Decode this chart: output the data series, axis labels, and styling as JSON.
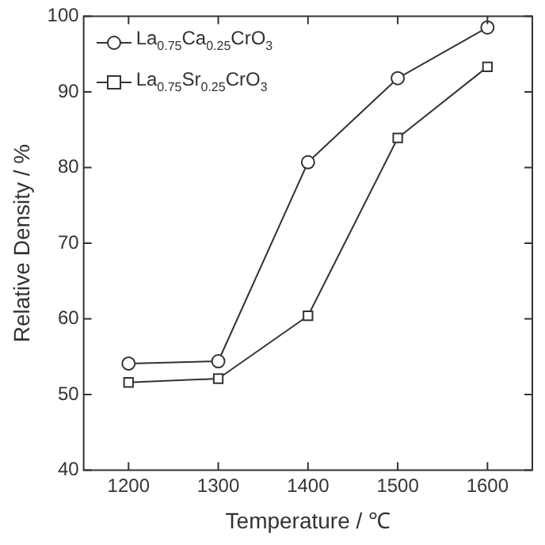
{
  "chart_data": {
    "type": "line",
    "xlabel": "Temperature / ℃",
    "ylabel": "Relative Density / %",
    "x": [
      1200,
      1300,
      1400,
      1500,
      1600
    ],
    "series": [
      {
        "name": "La$_{0.75}$Ca$_{0.25}$CrO$_{3}$",
        "color": "#333333",
        "marker": "circle",
        "values": [
          54.1,
          54.4,
          80.7,
          91.8,
          98.5
        ]
      },
      {
        "name": "La$_{0.75}$Sr$_{0.25}$CrO$_{3}$",
        "color": "#333333",
        "marker": "square",
        "values": [
          51.6,
          52.1,
          60.4,
          83.9,
          93.3
        ]
      }
    ],
    "xlim": [
      1150,
      1650
    ],
    "xticks": [
      1200,
      1300,
      1400,
      1500,
      1600
    ],
    "ylim": [
      40,
      100
    ],
    "yticks": [
      40,
      50,
      60,
      70,
      80,
      90,
      100
    ],
    "grid": false,
    "legend": "top left"
  }
}
